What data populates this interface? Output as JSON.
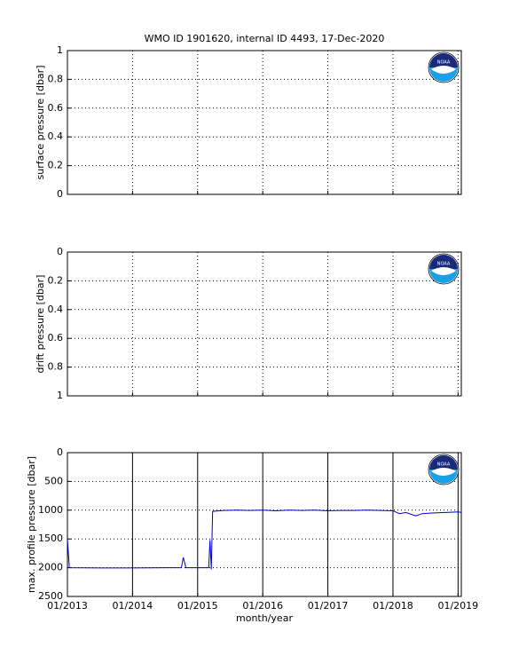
{
  "logo": "NOAA",
  "chart_data": [
    {
      "type": "empty",
      "title": "WMO ID 1901620, internal ID 4493, 17-Dec-2020",
      "y_label": "surface pressure [dbar]",
      "xlim": [
        2013,
        2019.05
      ],
      "xticks": [
        2013,
        2014,
        2015,
        2016,
        2017,
        2018,
        2019
      ],
      "ylim": [
        0,
        1
      ],
      "yticks": [
        0,
        0.2,
        0.4,
        0.6,
        0.8,
        1
      ],
      "grid": true,
      "xgrid_style": "dotted"
    },
    {
      "type": "empty",
      "y_label": "drift pressure [dbar]",
      "xlim": [
        2013,
        2019.05
      ],
      "xticks": [
        2013,
        2014,
        2015,
        2016,
        2017,
        2018,
        2019
      ],
      "ylim": [
        1,
        0
      ],
      "yticks": [
        0,
        0.2,
        0.4,
        0.6,
        0.8,
        1
      ],
      "grid": true,
      "xgrid_style": "dotted"
    },
    {
      "type": "line",
      "y_label": "max. profile pressure [dbar]",
      "x_label": "month/year",
      "xlim": [
        2013,
        2019.05
      ],
      "xticks": [
        {
          "value": 2013,
          "label": "01/2013"
        },
        {
          "value": 2014,
          "label": "01/2014"
        },
        {
          "value": 2015,
          "label": "01/2015"
        },
        {
          "value": 2016,
          "label": "01/2016"
        },
        {
          "value": 2017,
          "label": "01/2017"
        },
        {
          "value": 2018,
          "label": "01/2018"
        },
        {
          "value": 2019,
          "label": "01/2019"
        }
      ],
      "ylim": [
        2500,
        0
      ],
      "yticks": [
        0,
        500,
        1000,
        1500,
        2000,
        2500
      ],
      "grid": true,
      "xgrid_style": "solid",
      "color": "#0000cc",
      "x": [
        2013.0,
        2013.03,
        2013.5,
        2014.0,
        2014.5,
        2014.75,
        2014.78,
        2014.82,
        2015.0,
        2015.17,
        2015.19,
        2015.21,
        2015.23,
        2015.4,
        2015.6,
        2015.8,
        2016.0,
        2016.2,
        2016.4,
        2016.6,
        2016.8,
        2017.0,
        2017.2,
        2017.4,
        2017.6,
        2017.8,
        2018.0,
        2018.1,
        2018.2,
        2018.35,
        2018.45,
        2018.6,
        2018.8,
        2019.0,
        2019.05
      ],
      "values": [
        1500,
        2000,
        2005,
        2005,
        2000,
        2000,
        1820,
        2000,
        2000,
        2000,
        1520,
        2030,
        1020,
        1005,
        1000,
        1005,
        1000,
        1010,
        1000,
        1005,
        1000,
        1010,
        1005,
        1005,
        1000,
        1005,
        1010,
        1060,
        1040,
        1100,
        1060,
        1050,
        1040,
        1030,
        1040
      ]
    }
  ]
}
